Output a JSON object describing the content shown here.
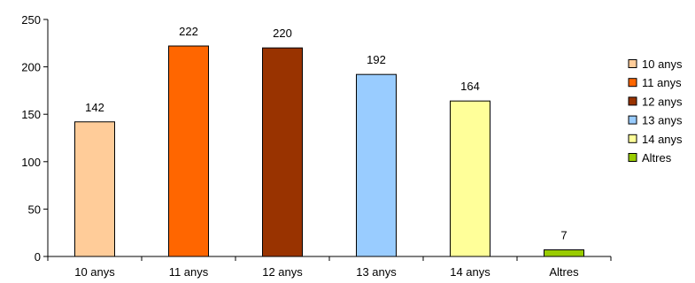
{
  "chart_data": {
    "type": "bar",
    "categories": [
      "10 anys",
      "11 anys",
      "12 anys",
      "13 anys",
      "14 anys",
      "Altres"
    ],
    "values": [
      142,
      222,
      220,
      192,
      164,
      7
    ],
    "colors": [
      "#FFCC99",
      "#FF6600",
      "#993300",
      "#99CCFF",
      "#FFFF99",
      "#99CC00"
    ],
    "y_ticks": [
      0,
      50,
      100,
      150,
      200,
      250
    ],
    "ylim": [
      0,
      250
    ],
    "grid": false,
    "legend_position": "right",
    "data_labels": true
  }
}
